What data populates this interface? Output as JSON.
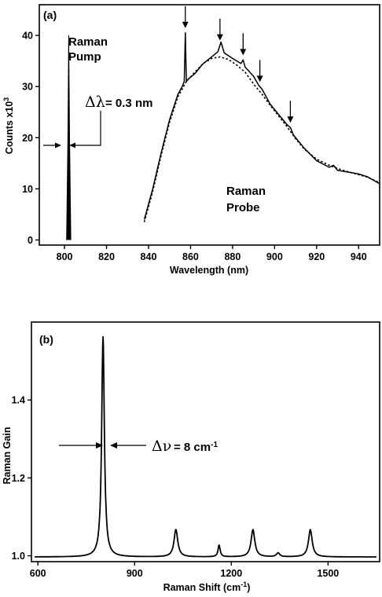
{
  "chart_data": [
    {
      "panel": "(a)",
      "type": "line",
      "xlabel": "Wavelength (nm)",
      "ylabel_main": "Counts x10",
      "ylabel_sup": "3",
      "xlim": [
        788,
        950
      ],
      "ylim": [
        -1,
        46
      ],
      "xticks": [
        800,
        820,
        840,
        860,
        880,
        900,
        920,
        940
      ],
      "yticks": [
        0,
        10,
        20,
        30,
        40
      ],
      "annotations": {
        "pump_line1": "Raman",
        "pump_line2": "Pump",
        "probe_line1": "Raman",
        "probe_line2": "Probe",
        "delta_symbol": "Δλ",
        "delta_text": "= 0.3 nm"
      },
      "arrow_wavelengths": [
        857.5,
        874,
        885,
        893,
        907.5
      ],
      "series": [
        {
          "style": "solid",
          "x": [
            801,
            801.6,
            802,
            802.4,
            803
          ],
          "y": [
            0,
            20,
            40,
            20,
            0
          ]
        },
        {
          "style": "solid",
          "x": [
            838,
            842,
            846,
            850,
            854,
            856,
            857,
            857.5,
            858,
            859,
            862,
            866,
            870,
            873,
            874.5,
            876,
            880,
            884,
            885,
            886,
            890,
            892.5,
            894,
            898,
            902,
            906,
            907.5,
            909,
            914,
            920,
            926,
            928,
            930,
            936,
            940,
            944,
            950
          ],
          "y": [
            4,
            10,
            17,
            23.5,
            28.5,
            30,
            31,
            40.5,
            31,
            31.5,
            32.5,
            34.5,
            35.8,
            36.8,
            38.7,
            36.6,
            35.5,
            34.5,
            35.2,
            33.8,
            32,
            30.2,
            29.5,
            26.5,
            24.5,
            22.5,
            22,
            20.5,
            18,
            15.5,
            14.2,
            14.6,
            13.6,
            13.2,
            12.9,
            12.4,
            11
          ]
        },
        {
          "style": "dotted",
          "x": [
            838,
            842,
            846,
            850,
            854,
            858,
            862,
            866,
            870,
            874,
            878,
            882,
            886,
            890,
            894,
            898,
            902,
            906,
            910,
            914,
            920,
            926,
            932,
            938,
            944,
            950
          ],
          "y": [
            3.5,
            9.5,
            16.5,
            23,
            28,
            31,
            32.8,
            34.5,
            35.5,
            35.8,
            35.3,
            34.2,
            32.8,
            30.5,
            28.5,
            26.3,
            24.2,
            22.1,
            19.8,
            17.8,
            15.8,
            14.6,
            13.7,
            13,
            12.3,
            11.2
          ]
        }
      ]
    },
    {
      "panel": "(b)",
      "type": "line",
      "xlabel_main": "Raman Shift (cm",
      "xlabel_sup": "-1",
      "xlabel_end": ")",
      "ylabel": "Raman Gain",
      "xlim": [
        580,
        1660
      ],
      "ylim": [
        0.985,
        1.6
      ],
      "xticks": [
        600,
        900,
        1200,
        1500
      ],
      "yticks": [
        1.0,
        1.2,
        1.4
      ],
      "ytick_labels": [
        "1.0",
        "1.2",
        "1.4"
      ],
      "annotations": {
        "delta_symbol": "Δν",
        "delta_text": "= 8 cm",
        "delta_sup": "-1"
      },
      "peaks": [
        {
          "center": 802,
          "height": 0.565,
          "hwhm": 5
        },
        {
          "center": 1028,
          "height": 0.07,
          "hwhm": 7
        },
        {
          "center": 1162,
          "height": 0.03,
          "hwhm": 4
        },
        {
          "center": 1267,
          "height": 0.07,
          "hwhm": 7
        },
        {
          "center": 1345,
          "height": 0.01,
          "hwhm": 6
        },
        {
          "center": 1445,
          "height": 0.07,
          "hwhm": 7
        }
      ],
      "baseline": 0.997
    }
  ]
}
